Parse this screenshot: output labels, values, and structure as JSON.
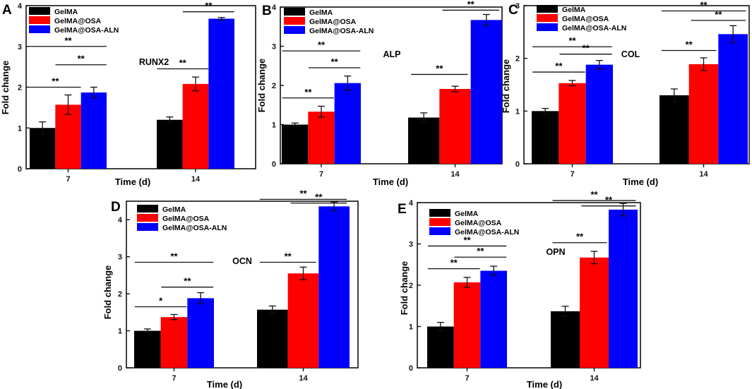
{
  "figure": {
    "colors": {
      "GelMA": "#000000",
      "GelMA@OSA": "#ff0000",
      "GelMA@OSA-ALN": "#0000ff"
    }
  },
  "chart_data": [
    {
      "panel": "A",
      "type": "bar",
      "title": "RUNX2",
      "xlabel": "Time (d)",
      "ylabel": "Fold change",
      "categories": [
        "7",
        "14"
      ],
      "ylim": [
        0,
        4
      ],
      "yticks": [
        "0",
        "1",
        "2",
        "3",
        "4"
      ],
      "legend": [
        "GelMA",
        "GelMA@OSA",
        "GelMA@OSA-ALN"
      ],
      "series": [
        {
          "name": "GelMA",
          "values": [
            1.0,
            1.2
          ],
          "errors": [
            0.15,
            0.07
          ]
        },
        {
          "name": "GelMA@OSA",
          "values": [
            1.57,
            2.08
          ],
          "errors": [
            0.24,
            0.17
          ]
        },
        {
          "name": "GelMA@OSA-ALN",
          "values": [
            1.87,
            3.68
          ],
          "errors": [
            0.13,
            0.03
          ]
        }
      ],
      "sig": [
        {
          "g": 0,
          "a": 0,
          "b": 1,
          "y": 2.0,
          "label": "**"
        },
        {
          "g": 0,
          "a": 1,
          "b": 2,
          "y": 2.55,
          "label": "**"
        },
        {
          "g": 0,
          "a": 0,
          "b": 2,
          "y": 3.0,
          "label": "**"
        },
        {
          "g": 1,
          "a": 0,
          "b": 1,
          "y": 2.45,
          "label": "**"
        },
        {
          "g": 1,
          "a": 1,
          "b": 2,
          "y": 3.85,
          "label": "**"
        },
        {
          "g": 1,
          "a": 0,
          "b": 2,
          "y": 4.22,
          "label": "**"
        }
      ]
    },
    {
      "panel": "B",
      "type": "bar",
      "title": "ALP",
      "xlabel": "Time (d)",
      "ylabel": "Fold change",
      "categories": [
        "7",
        "14"
      ],
      "ylim": [
        0,
        4
      ],
      "yticks": [
        "0",
        "1",
        "2",
        "3",
        "4"
      ],
      "legend": [
        "GelMA",
        "GelMA@OSA",
        "GelMA@OSA-ALN"
      ],
      "series": [
        {
          "name": "GelMA",
          "values": [
            1.0,
            1.18
          ],
          "errors": [
            0.04,
            0.12
          ]
        },
        {
          "name": "GelMA@OSA",
          "values": [
            1.33,
            1.91
          ],
          "errors": [
            0.14,
            0.07
          ]
        },
        {
          "name": "GelMA@OSA-ALN",
          "values": [
            2.06,
            3.67
          ],
          "errors": [
            0.18,
            0.14
          ]
        }
      ],
      "sig": [
        {
          "g": 0,
          "a": 0,
          "b": 1,
          "y": 1.68,
          "label": "**"
        },
        {
          "g": 0,
          "a": 1,
          "b": 2,
          "y": 2.45,
          "label": "**"
        },
        {
          "g": 0,
          "a": 0,
          "b": 2,
          "y": 2.88,
          "label": "**"
        },
        {
          "g": 1,
          "a": 0,
          "b": 1,
          "y": 2.28,
          "label": "**"
        },
        {
          "g": 1,
          "a": 1,
          "b": 2,
          "y": 3.92,
          "label": "**"
        },
        {
          "g": 1,
          "a": 0,
          "b": 2,
          "y": 4.23,
          "label": "**"
        }
      ]
    },
    {
      "panel": "C",
      "type": "bar",
      "title": "COL",
      "xlabel": "Time (d)",
      "ylabel": "Fold change",
      "categories": [
        "7",
        "14"
      ],
      "ylim": [
        0,
        3
      ],
      "yticks": [
        "0",
        "1",
        "2",
        "3"
      ],
      "legend": [
        "GelMA",
        "GelMA@OSA",
        "GelMA@OSA-ALN"
      ],
      "series": [
        {
          "name": "GelMA",
          "values": [
            1.0,
            1.3
          ],
          "errors": [
            0.05,
            0.12
          ]
        },
        {
          "name": "GelMA@OSA",
          "values": [
            1.53,
            1.89
          ],
          "errors": [
            0.05,
            0.12
          ]
        },
        {
          "name": "GelMA@OSA-ALN",
          "values": [
            1.88,
            2.46
          ],
          "errors": [
            0.08,
            0.16
          ]
        }
      ],
      "sig": [
        {
          "g": 0,
          "a": 0,
          "b": 1,
          "y": 1.74,
          "label": "**"
        },
        {
          "g": 0,
          "a": 1,
          "b": 2,
          "y": 2.08,
          "label": "**"
        },
        {
          "g": 0,
          "a": 0,
          "b": 2,
          "y": 2.22,
          "label": "**"
        },
        {
          "g": 1,
          "a": 0,
          "b": 1,
          "y": 2.15,
          "label": "**"
        },
        {
          "g": 1,
          "a": 1,
          "b": 2,
          "y": 2.72,
          "label": "**"
        },
        {
          "g": 1,
          "a": 0,
          "b": 2,
          "y": 2.9,
          "label": "**"
        }
      ]
    },
    {
      "panel": "D",
      "type": "bar",
      "title": "OCN",
      "xlabel": "Time (d)",
      "ylabel": "Fold change",
      "categories": [
        "7",
        "14"
      ],
      "ylim": [
        0,
        4.5
      ],
      "yticks": [
        "0",
        "1",
        "2",
        "3",
        "4"
      ],
      "legend": [
        "GelMA",
        "GelMA@OSA",
        "GelMA@OSA-ALN"
      ],
      "series": [
        {
          "name": "GelMA",
          "values": [
            1.0,
            1.57
          ],
          "errors": [
            0.05,
            0.1
          ]
        },
        {
          "name": "GelMA@OSA",
          "values": [
            1.37,
            2.55
          ],
          "errors": [
            0.07,
            0.17
          ]
        },
        {
          "name": "GelMA@OSA-ALN",
          "values": [
            1.88,
            4.36
          ],
          "errors": [
            0.15,
            0.12
          ]
        }
      ],
      "sig": [
        {
          "g": 0,
          "a": 0,
          "b": 1,
          "y": 1.65,
          "label": "*"
        },
        {
          "g": 0,
          "a": 1,
          "b": 2,
          "y": 2.18,
          "label": "**"
        },
        {
          "g": 0,
          "a": 0,
          "b": 2,
          "y": 2.85,
          "label": "**"
        },
        {
          "g": 1,
          "a": 0,
          "b": 1,
          "y": 2.85,
          "label": "**"
        },
        {
          "g": 1,
          "a": 1,
          "b": 2,
          "y": 4.45,
          "label": "**"
        },
        {
          "g": 1,
          "a": 0,
          "b": 2,
          "y": 4.55,
          "label": "**"
        }
      ]
    },
    {
      "panel": "E",
      "type": "bar",
      "title": "OPN",
      "xlabel": "Time (d)",
      "ylabel": "Fold change",
      "categories": [
        "7",
        "14"
      ],
      "ylim": [
        0,
        4
      ],
      "yticks": [
        "0",
        "1",
        "2",
        "3",
        "4"
      ],
      "legend": [
        "GelMA",
        "GelMA@OSA",
        "GelMA@OSA-ALN"
      ],
      "series": [
        {
          "name": "GelMA",
          "values": [
            1.0,
            1.37
          ],
          "errors": [
            0.1,
            0.12
          ]
        },
        {
          "name": "GelMA@OSA",
          "values": [
            2.07,
            2.67
          ],
          "errors": [
            0.12,
            0.15
          ]
        },
        {
          "name": "GelMA@OSA-ALN",
          "values": [
            2.35,
            3.83
          ],
          "errors": [
            0.11,
            0.15
          ]
        }
      ],
      "sig": [
        {
          "g": 0,
          "a": 0,
          "b": 1,
          "y": 2.4,
          "label": "**"
        },
        {
          "g": 0,
          "a": 1,
          "b": 2,
          "y": 2.68,
          "label": "**"
        },
        {
          "g": 0,
          "a": 0,
          "b": 2,
          "y": 2.95,
          "label": "**"
        },
        {
          "g": 1,
          "a": 0,
          "b": 1,
          "y": 3.03,
          "label": "**"
        },
        {
          "g": 1,
          "a": 1,
          "b": 2,
          "y": 3.92,
          "label": "**"
        },
        {
          "g": 1,
          "a": 0,
          "b": 2,
          "y": 4.05,
          "label": "**"
        }
      ]
    }
  ]
}
